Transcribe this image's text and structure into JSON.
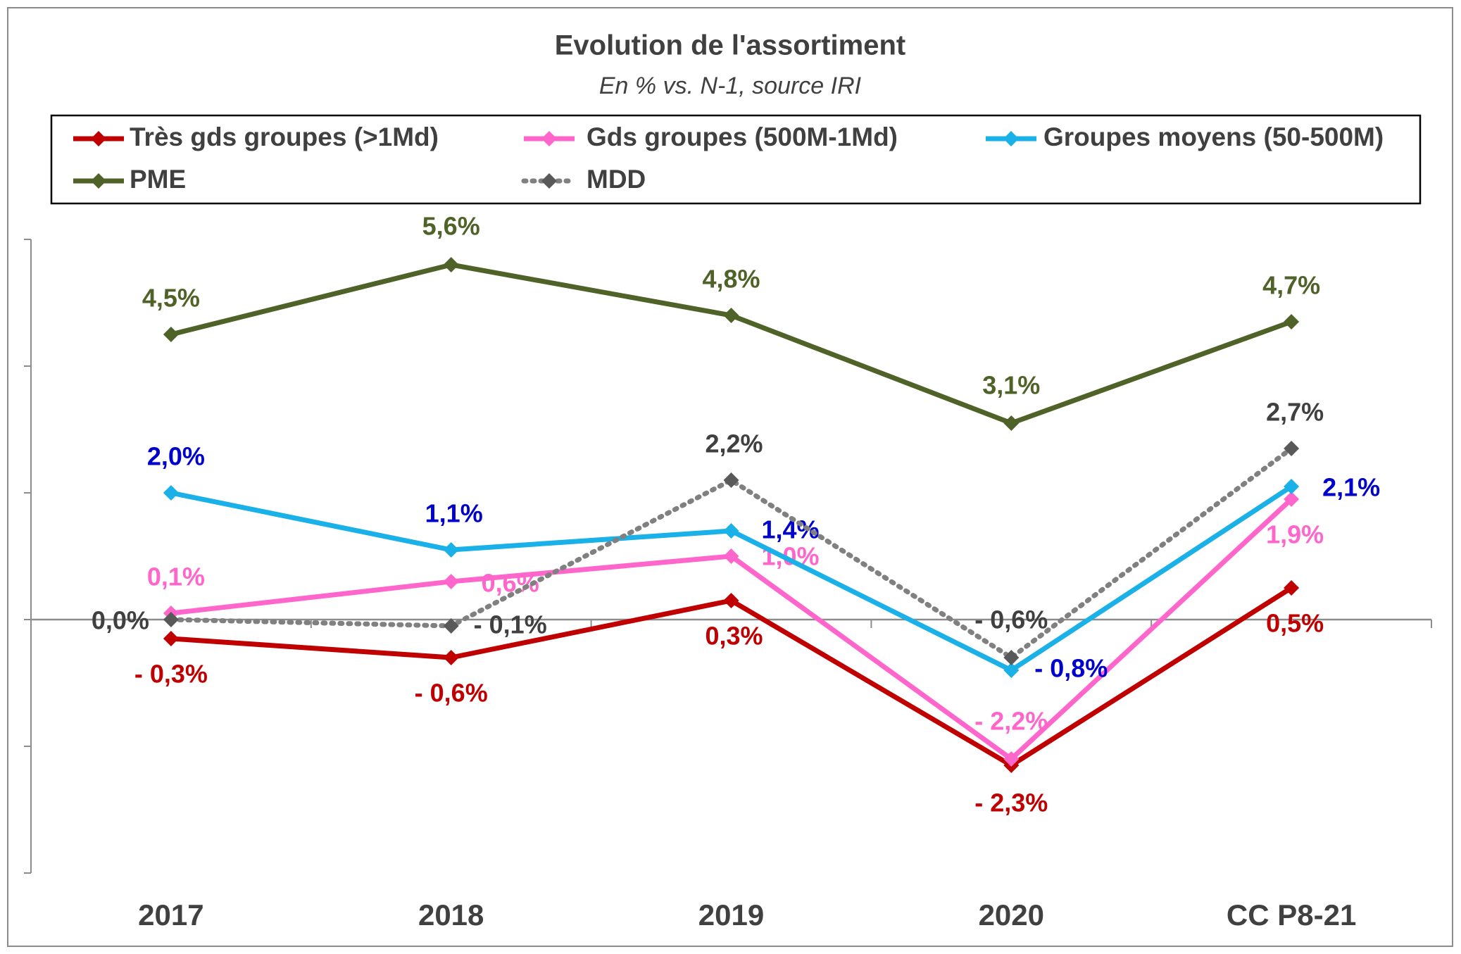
{
  "chart_data": {
    "type": "line",
    "title": "Evolution de l'assortiment",
    "subtitle": "En % vs. N-1, source IRI",
    "categories": [
      "2017",
      "2018",
      "2019",
      "2020",
      "CC P8-21"
    ],
    "ylim": [
      -4,
      6
    ],
    "yticks": [
      -4,
      -2,
      0,
      2,
      4,
      6
    ],
    "series": [
      {
        "name": "Très gds groupes (>1Md)",
        "color": "#c00000",
        "label_color": "#c00000",
        "values": [
          -0.3,
          -0.6,
          0.3,
          -2.3,
          0.5
        ],
        "value_labels": [
          "- 0,3%",
          "- 0,6%",
          "0,3%",
          "- 2,3%",
          "0,5%"
        ]
      },
      {
        "name": "Gds groupes (500M-1Md)",
        "color": "#ff66cc",
        "label_color": "#ff66cc",
        "values": [
          0.1,
          0.6,
          1.0,
          -2.2,
          1.9
        ],
        "value_labels": [
          "0,1%",
          "0,6%",
          "1,0%",
          "- 2,2%",
          "1,9%"
        ]
      },
      {
        "name": "Groupes moyens (50-500M)",
        "color": "#1ab0e8",
        "label_color": "#0000cc",
        "values": [
          2.0,
          1.1,
          1.4,
          -0.8,
          2.1
        ],
        "value_labels": [
          "2,0%",
          "1,1%",
          "1,4%",
          "- 0,8%",
          "2,1%"
        ]
      },
      {
        "name": "PME",
        "color": "#4f6228",
        "label_color": "#4f6228",
        "values": [
          4.5,
          5.6,
          4.8,
          3.1,
          4.7
        ],
        "value_labels": [
          "4,5%",
          "5,6%",
          "4,8%",
          "3,1%",
          "4,7%"
        ]
      },
      {
        "name": "MDD",
        "color": "#808080",
        "marker_color": "#595959",
        "label_color": "#404040",
        "dashed": true,
        "values": [
          0.0,
          -0.1,
          2.2,
          -0.6,
          2.7
        ],
        "value_labels": [
          "0,0%",
          "- 0,1%",
          "2,2%",
          "- 0,6%",
          "2,7%"
        ]
      }
    ]
  }
}
